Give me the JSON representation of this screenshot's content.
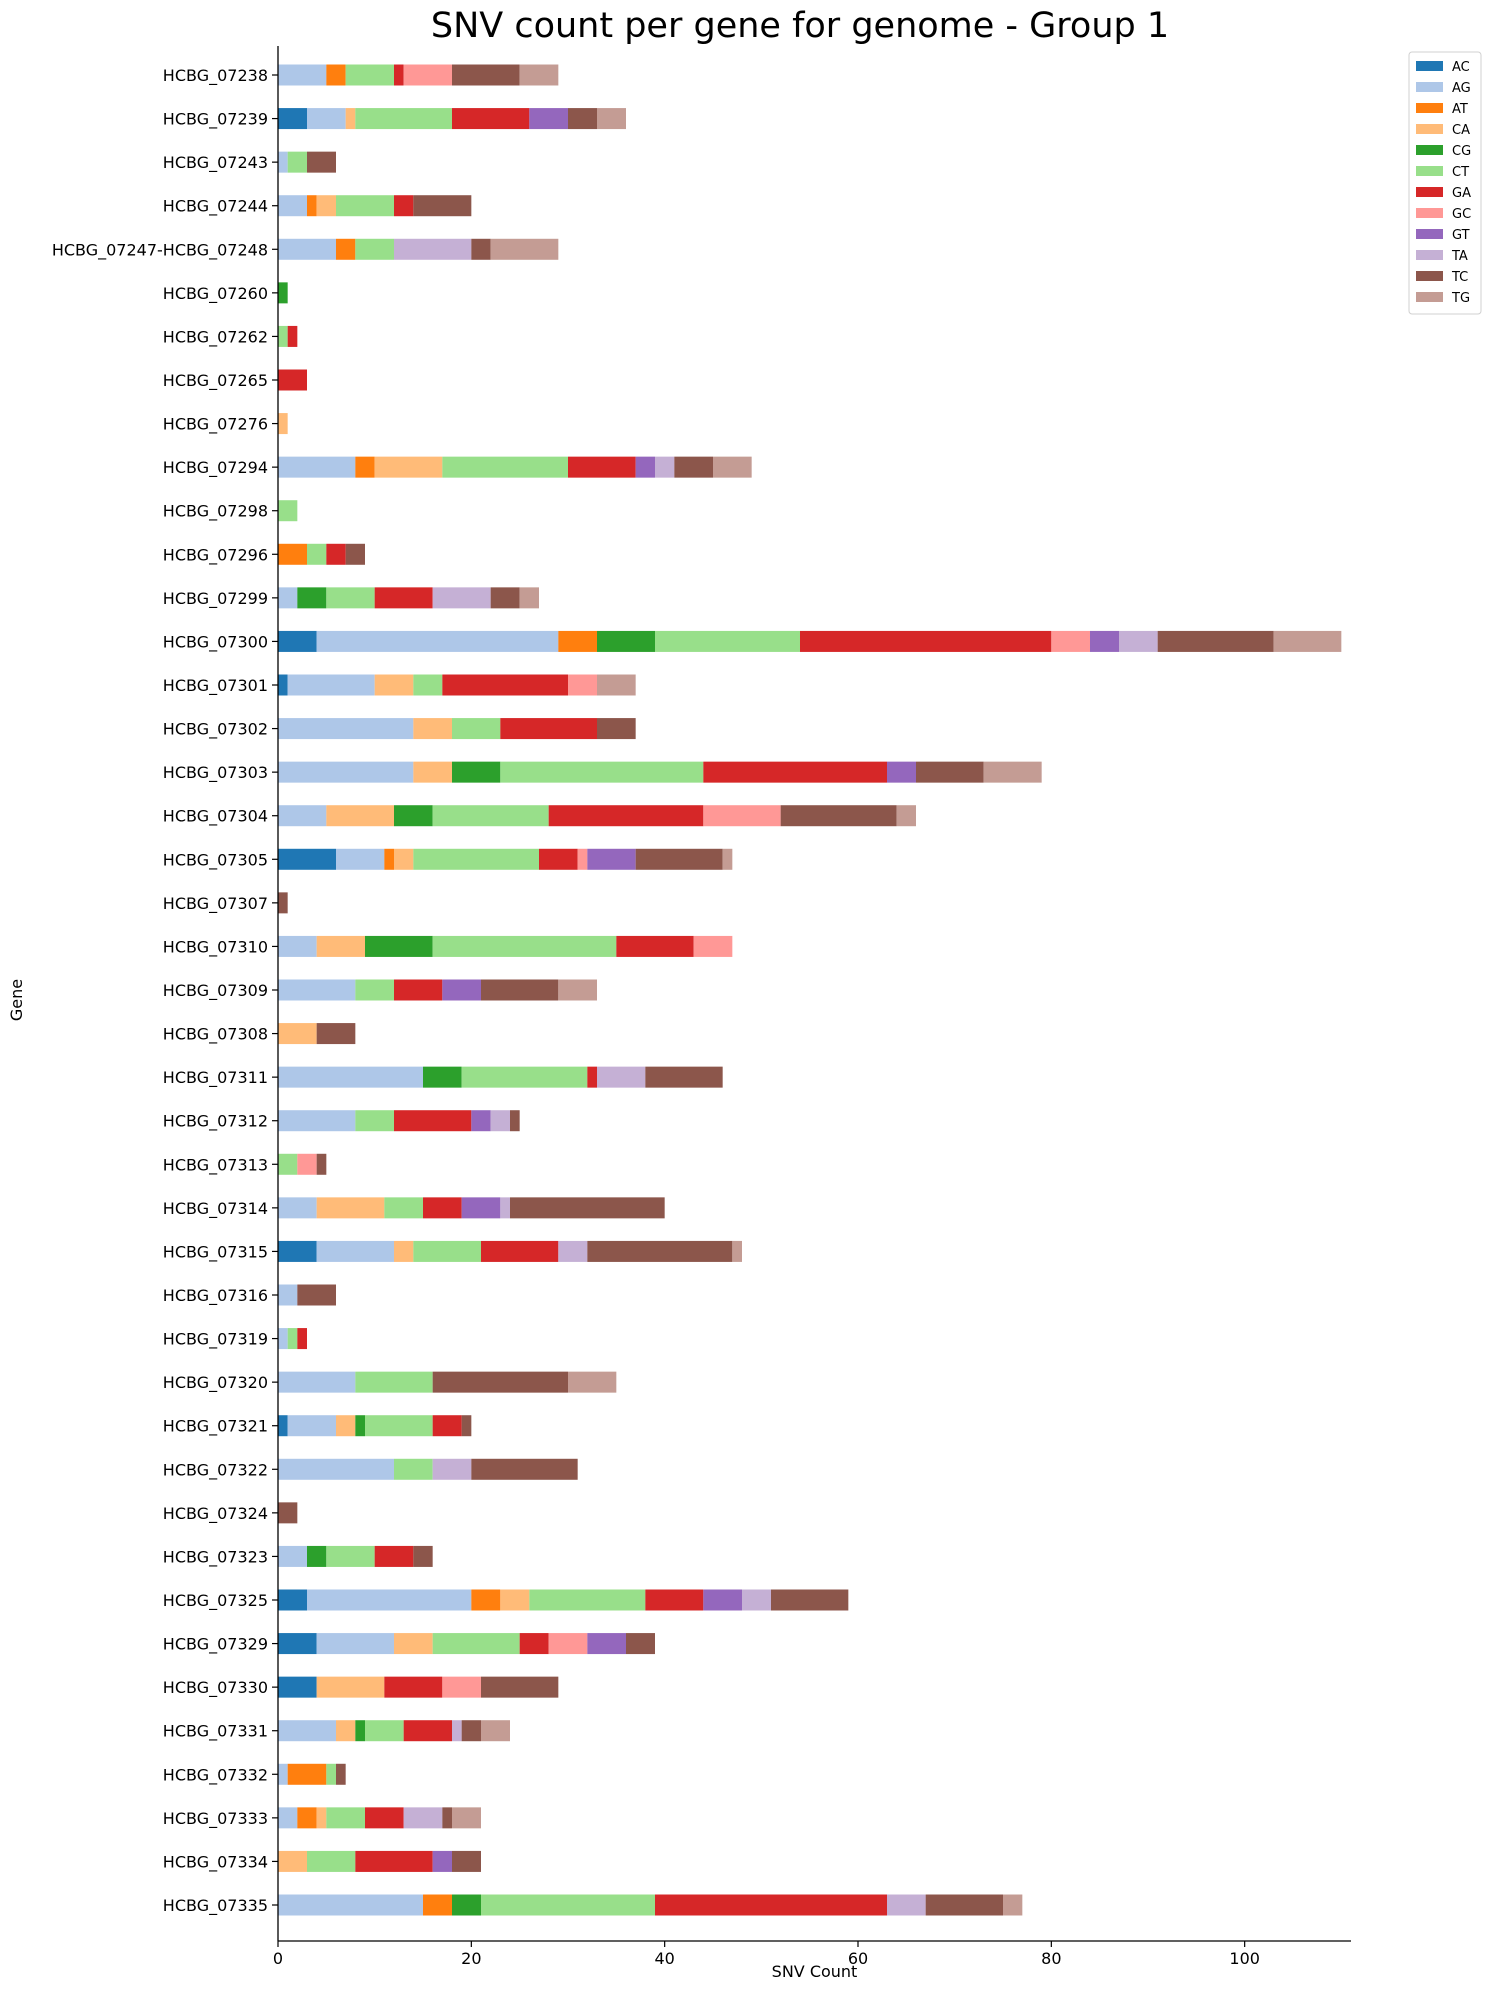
{
  "chart_data": {
    "type": "bar",
    "orientation": "horizontal",
    "stacked": true,
    "title": "SNV count per gene for genome - Group 1",
    "xlabel": "SNV Count",
    "ylabel": "Gene",
    "xlim": [
      0,
      111
    ],
    "xticks": [
      0,
      20,
      40,
      60,
      80,
      100
    ],
    "grid": false,
    "legend_position": "top-right, outside plot",
    "colors": {
      "AC": "#1f77b4",
      "AG": "#aec7e8",
      "AT": "#ff7f0e",
      "CA": "#ffbb78",
      "CG": "#2ca02c",
      "CT": "#98df8a",
      "GA": "#d62728",
      "GC": "#ff9896",
      "GT": "#9467bd",
      "TA": "#c5b0d5",
      "TC": "#8c564b",
      "TG": "#c49c94"
    },
    "series_keys": [
      "AC",
      "AG",
      "AT",
      "CA",
      "CG",
      "CT",
      "GA",
      "GC",
      "GT",
      "TA",
      "TC",
      "TG"
    ],
    "categories": [
      "HCBG_07238",
      "HCBG_07239",
      "HCBG_07243",
      "HCBG_07244",
      "HCBG_07247-HCBG_07248",
      "HCBG_07260",
      "HCBG_07262",
      "HCBG_07265",
      "HCBG_07276",
      "HCBG_07294",
      "HCBG_07298",
      "HCBG_07296",
      "HCBG_07299",
      "HCBG_07300",
      "HCBG_07301",
      "HCBG_07302",
      "HCBG_07303",
      "HCBG_07304",
      "HCBG_07305",
      "HCBG_07307",
      "HCBG_07310",
      "HCBG_07309",
      "HCBG_07308",
      "HCBG_07311",
      "HCBG_07312",
      "HCBG_07313",
      "HCBG_07314",
      "HCBG_07315",
      "HCBG_07316",
      "HCBG_07319",
      "HCBG_07320",
      "HCBG_07321",
      "HCBG_07322",
      "HCBG_07324",
      "HCBG_07323",
      "HCBG_07325",
      "HCBG_07329",
      "HCBG_07330",
      "HCBG_07331",
      "HCBG_07332",
      "HCBG_07333",
      "HCBG_07334",
      "HCBG_07335"
    ],
    "series": [
      {
        "name": "AC",
        "values": [
          0,
          3,
          0,
          0,
          0,
          0,
          0,
          0,
          0,
          0,
          0,
          0,
          0,
          4,
          1,
          0,
          0,
          0,
          6,
          0,
          0,
          0,
          0,
          0,
          0,
          0,
          0,
          4,
          0,
          0,
          0,
          1,
          0,
          0,
          0,
          3,
          4,
          4,
          0,
          0,
          0,
          0,
          0
        ]
      },
      {
        "name": "AG",
        "values": [
          5,
          4,
          1,
          3,
          6,
          0,
          0,
          0,
          0,
          8,
          0,
          0,
          2,
          25,
          9,
          14,
          14,
          5,
          5,
          0,
          4,
          8,
          0,
          15,
          8,
          0,
          4,
          8,
          2,
          1,
          8,
          5,
          12,
          0,
          3,
          17,
          8,
          0,
          6,
          1,
          2,
          0,
          15
        ]
      },
      {
        "name": "AT",
        "values": [
          2,
          0,
          0,
          1,
          2,
          0,
          0,
          0,
          0,
          2,
          0,
          3,
          0,
          4,
          0,
          0,
          0,
          0,
          1,
          0,
          0,
          0,
          0,
          0,
          0,
          0,
          0,
          0,
          0,
          0,
          0,
          0,
          0,
          0,
          0,
          3,
          0,
          0,
          0,
          4,
          2,
          0,
          3
        ]
      },
      {
        "name": "CA",
        "values": [
          0,
          1,
          0,
          2,
          0,
          0,
          0,
          0,
          1,
          7,
          0,
          0,
          0,
          0,
          4,
          4,
          4,
          7,
          2,
          0,
          5,
          0,
          4,
          0,
          0,
          0,
          7,
          2,
          0,
          0,
          0,
          2,
          0,
          0,
          0,
          3,
          4,
          7,
          2,
          0,
          1,
          3,
          0
        ]
      },
      {
        "name": "CG",
        "values": [
          0,
          0,
          0,
          0,
          0,
          1,
          0,
          0,
          0,
          0,
          0,
          0,
          3,
          6,
          0,
          0,
          5,
          4,
          0,
          0,
          7,
          0,
          0,
          4,
          0,
          0,
          0,
          0,
          0,
          0,
          0,
          1,
          0,
          0,
          2,
          0,
          0,
          0,
          1,
          0,
          0,
          0,
          3
        ]
      },
      {
        "name": "CT",
        "values": [
          5,
          10,
          2,
          6,
          4,
          0,
          1,
          0,
          0,
          13,
          2,
          2,
          5,
          15,
          3,
          5,
          21,
          12,
          13,
          0,
          19,
          4,
          0,
          13,
          4,
          2,
          4,
          7,
          0,
          1,
          8,
          7,
          4,
          0,
          5,
          12,
          9,
          0,
          4,
          1,
          4,
          5,
          18
        ]
      },
      {
        "name": "GA",
        "values": [
          1,
          8,
          0,
          2,
          0,
          0,
          1,
          3,
          0,
          7,
          0,
          2,
          6,
          26,
          13,
          10,
          19,
          16,
          4,
          0,
          8,
          5,
          0,
          1,
          8,
          0,
          4,
          8,
          0,
          1,
          0,
          3,
          0,
          0,
          4,
          6,
          3,
          6,
          5,
          0,
          4,
          8,
          24
        ]
      },
      {
        "name": "GC",
        "values": [
          5,
          0,
          0,
          0,
          0,
          0,
          0,
          0,
          0,
          0,
          0,
          0,
          0,
          4,
          3,
          0,
          0,
          8,
          1,
          0,
          4,
          0,
          0,
          0,
          0,
          2,
          0,
          0,
          0,
          0,
          0,
          0,
          0,
          0,
          0,
          0,
          4,
          4,
          0,
          0,
          0,
          0,
          0
        ]
      },
      {
        "name": "GT",
        "values": [
          0,
          4,
          0,
          0,
          0,
          0,
          0,
          0,
          0,
          2,
          0,
          0,
          0,
          3,
          0,
          0,
          3,
          0,
          5,
          0,
          0,
          4,
          0,
          0,
          2,
          0,
          4,
          0,
          0,
          0,
          0,
          0,
          0,
          0,
          0,
          4,
          4,
          0,
          0,
          0,
          0,
          2,
          0
        ]
      },
      {
        "name": "TA",
        "values": [
          0,
          0,
          0,
          0,
          8,
          0,
          0,
          0,
          0,
          2,
          0,
          0,
          6,
          4,
          0,
          0,
          0,
          0,
          0,
          0,
          0,
          0,
          0,
          5,
          2,
          0,
          1,
          3,
          0,
          0,
          0,
          0,
          4,
          0,
          0,
          3,
          0,
          0,
          1,
          0,
          4,
          0,
          4
        ]
      },
      {
        "name": "TC",
        "values": [
          7,
          3,
          3,
          6,
          2,
          0,
          0,
          0,
          0,
          4,
          0,
          2,
          3,
          12,
          0,
          4,
          7,
          12,
          9,
          1,
          0,
          8,
          4,
          8,
          1,
          1,
          16,
          15,
          4,
          0,
          14,
          1,
          11,
          2,
          2,
          8,
          3,
          8,
          2,
          1,
          1,
          3,
          8
        ]
      },
      {
        "name": "TG",
        "values": [
          4,
          3,
          0,
          0,
          7,
          0,
          0,
          0,
          0,
          4,
          0,
          0,
          2,
          7,
          4,
          0,
          6,
          2,
          1,
          0,
          0,
          4,
          0,
          0,
          0,
          0,
          0,
          1,
          0,
          0,
          5,
          0,
          0,
          0,
          0,
          0,
          0,
          0,
          3,
          0,
          3,
          0,
          2
        ]
      }
    ]
  }
}
